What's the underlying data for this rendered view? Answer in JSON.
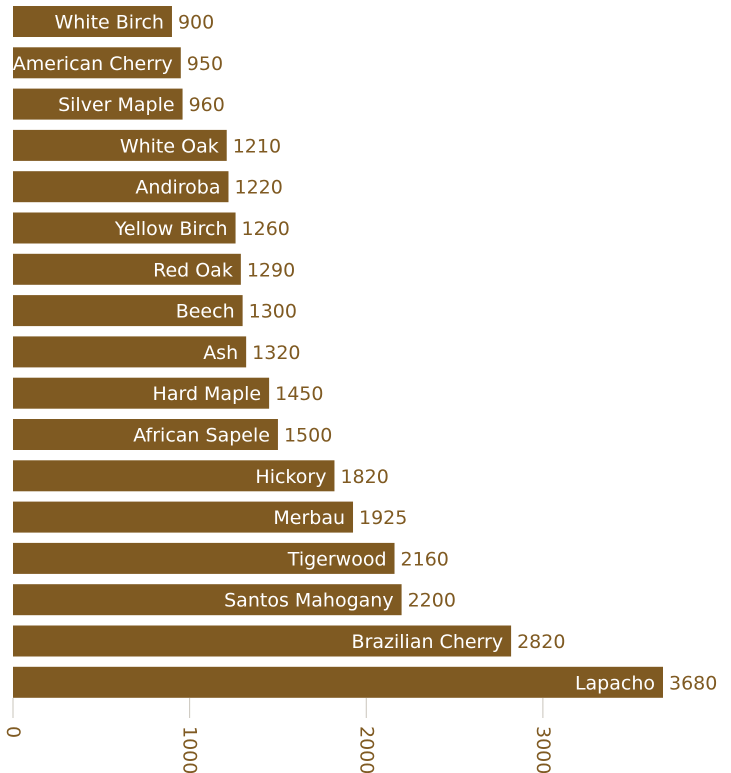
{
  "chart_data": {
    "type": "bar",
    "orientation": "horizontal",
    "categories": [
      "White Birch",
      "American Cherry",
      "Silver Maple",
      "White Oak",
      "Andiroba",
      "Yellow Birch",
      "Red Oak",
      "Beech",
      "Ash",
      "Hard Maple",
      "African Sapele",
      "Hickory",
      "Merbau",
      "Tigerwood",
      "Santos Mahogany",
      "Brazilian Cherry",
      "Lapacho"
    ],
    "values": [
      900,
      950,
      960,
      1210,
      1220,
      1260,
      1290,
      1300,
      1320,
      1450,
      1500,
      1820,
      1925,
      2160,
      2200,
      2820,
      3680
    ],
    "xlim": [
      0,
      3680
    ],
    "xticks": [
      0,
      1000,
      2000,
      3000
    ],
    "xtick_labels": [
      "0",
      "1000",
      "2000",
      "3000"
    ],
    "grid": false,
    "colors": {
      "bar": "#7f5a22",
      "bar_text": "#ffffff",
      "value_text": "#7f5a22",
      "tick_line": "#c9c4bb"
    }
  }
}
